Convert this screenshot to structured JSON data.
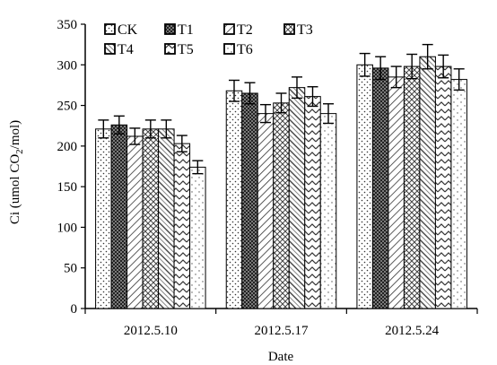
{
  "chart_data": {
    "type": "bar",
    "title": "",
    "xlabel": "Date",
    "ylabel_parts": [
      "Ci (umol CO",
      "2",
      "/mol)"
    ],
    "categories": [
      "2012.5.10",
      "2012.5.17",
      "2012.5.24"
    ],
    "ylim": [
      0,
      350
    ],
    "yticks": [
      0,
      50,
      100,
      150,
      200,
      250,
      300,
      350
    ],
    "grid": false,
    "legend_position": "top-left",
    "error_bars": true,
    "series": [
      {
        "name": "CK",
        "pattern": "dots",
        "values": [
          221,
          268,
          300
        ],
        "errors": [
          11,
          13,
          14
        ]
      },
      {
        "name": "T1",
        "pattern": "dense-check",
        "values": [
          226,
          265,
          296
        ],
        "errors": [
          11,
          13,
          14
        ]
      },
      {
        "name": "T2",
        "pattern": "diag-right",
        "values": [
          212,
          240,
          285
        ],
        "errors": [
          10,
          11,
          13
        ]
      },
      {
        "name": "T3",
        "pattern": "check",
        "values": [
          221,
          253,
          298
        ],
        "errors": [
          11,
          12,
          15
        ]
      },
      {
        "name": "T4",
        "pattern": "wave",
        "values": [
          221,
          272,
          310
        ],
        "errors": [
          11,
          13,
          15
        ]
      },
      {
        "name": "T5",
        "pattern": "zigzag",
        "values": [
          203,
          261,
          298
        ],
        "errors": [
          10,
          12,
          14
        ]
      },
      {
        "name": "T6",
        "pattern": "sparse-dots",
        "values": [
          174,
          240,
          282
        ],
        "errors": [
          8,
          12,
          13
        ]
      }
    ]
  }
}
